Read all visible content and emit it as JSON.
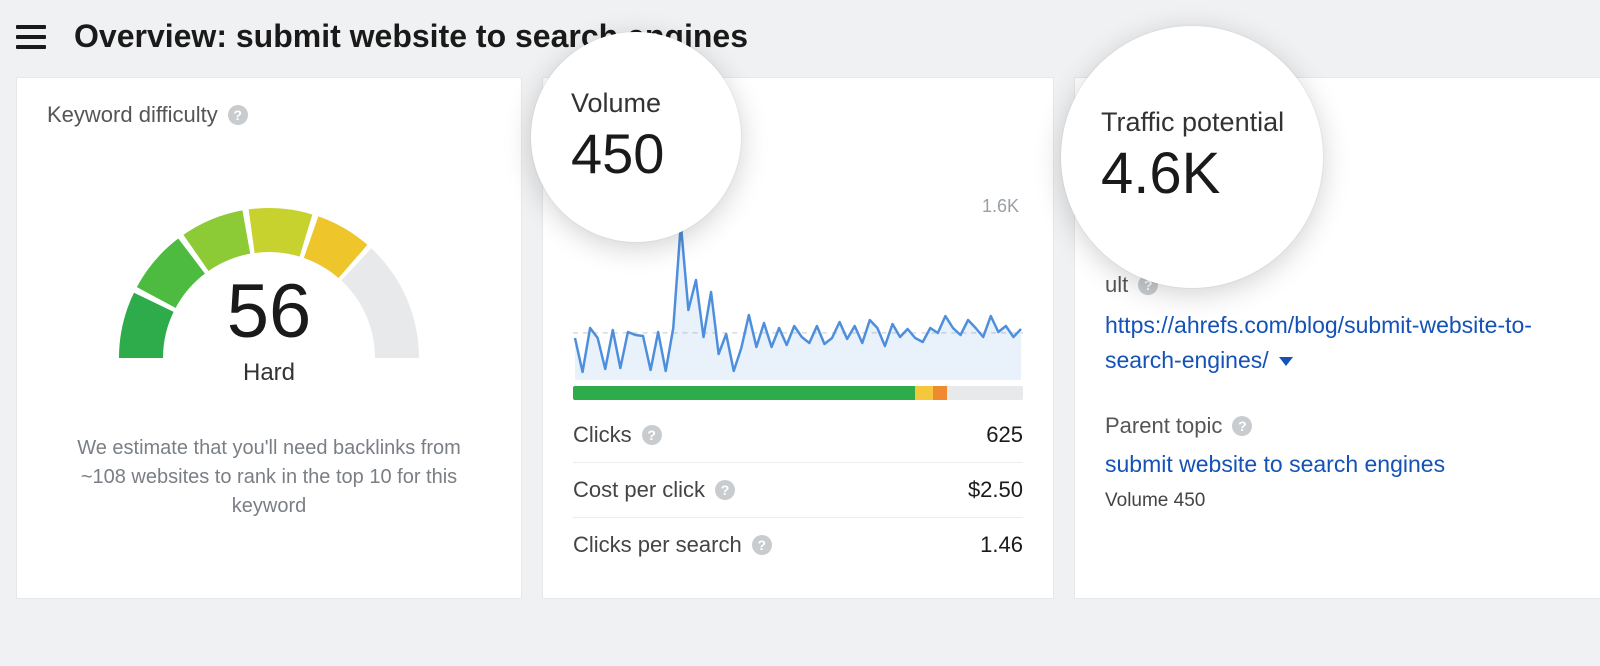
{
  "header": {
    "title": "Overview: submit website to search engines"
  },
  "difficulty": {
    "label": "Keyword difficulty",
    "value": "56",
    "rating": "Hard",
    "footnote": "We estimate that you'll need backlinks from ~108 websites to rank in the top 10 for this keyword",
    "gauge": {
      "track_color": "#e8e9ea",
      "segments": [
        {
          "from": 180,
          "to": 207,
          "color": "#2eab4a"
        },
        {
          "from": 207,
          "to": 234,
          "color": "#4cbb3f"
        },
        {
          "from": 234,
          "to": 261,
          "color": "#8cca36"
        },
        {
          "from": 261,
          "to": 288,
          "color": "#c7d22e"
        },
        {
          "from": 288,
          "to": 312,
          "color": "#eec52a"
        }
      ],
      "gap_color": "#ffffff",
      "separators": [
        207,
        234,
        261,
        288
      ]
    }
  },
  "volume": {
    "bubble_label": "Volume",
    "value": "450",
    "chart": {
      "max_label": "1.6K",
      "ymax": 1600,
      "line_color": "#4e8fdd",
      "fill_color": "rgba(78,143,221,0.12)",
      "baseline_color": "#d8dadc",
      "series": [
        420,
        80,
        520,
        420,
        110,
        500,
        120,
        480,
        450,
        440,
        100,
        480,
        90,
        520,
        1560,
        700,
        1000,
        430,
        880,
        260,
        460,
        90,
        320,
        650,
        330,
        570,
        330,
        520,
        350,
        540,
        430,
        370,
        540,
        360,
        420,
        580,
        410,
        540,
        370,
        600,
        520,
        340,
        560,
        430,
        510,
        420,
        380,
        520,
        470,
        640,
        520,
        450,
        600,
        520,
        430,
        640,
        480,
        540,
        430,
        510
      ]
    },
    "distribution": [
      {
        "color": "#2eab4a",
        "pct": 76
      },
      {
        "color": "#f5c73d",
        "pct": 4
      },
      {
        "color": "#ef8a2e",
        "pct": 3
      },
      {
        "color": "#e8e9ea",
        "pct": 17
      }
    ],
    "metrics": [
      {
        "name": "Clicks",
        "value": "625"
      },
      {
        "name": "Cost per click",
        "value": "$2.50"
      },
      {
        "name": "Clicks per search",
        "value": "1.46"
      }
    ]
  },
  "traffic": {
    "bubble_label": "Traffic potential",
    "value": "4.6K",
    "result_cut_label": "ult",
    "result_url": "https://ahrefs.com/blog/submit-website-to-search-engines/",
    "parent_label": "Parent topic",
    "parent_topic": "submit website to search engines",
    "volume_line": "Volume 450"
  },
  "colors": {
    "link": "#1452b7",
    "muted": "#7a7f85",
    "bg": "#f0f1f2"
  }
}
